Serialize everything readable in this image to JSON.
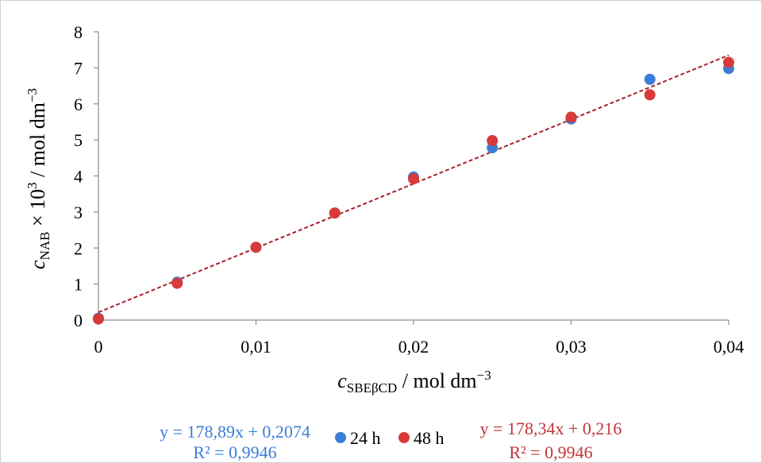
{
  "chart_data": {
    "type": "scatter",
    "xlabel": {
      "italic": "c",
      "sub": "SBEβCD",
      "rest": " / mol dm",
      "sup": "−3"
    },
    "ylabel": {
      "italic": "c",
      "sub": "NAB",
      "mid": " × 10",
      "sup1": "3",
      "rest": " / mol dm",
      "sup2": "−3"
    },
    "xlim": [
      0,
      0.04
    ],
    "ylim": [
      0,
      8
    ],
    "x_ticks": [
      {
        "value": 0,
        "label": "0"
      },
      {
        "value": 0.01,
        "label": "0,01"
      },
      {
        "value": 0.02,
        "label": "0,02"
      },
      {
        "value": 0.03,
        "label": "0,03"
      },
      {
        "value": 0.04,
        "label": "0,04"
      }
    ],
    "y_ticks": [
      {
        "value": 0,
        "label": "0"
      },
      {
        "value": 1,
        "label": "1"
      },
      {
        "value": 2,
        "label": "2"
      },
      {
        "value": 3,
        "label": "3"
      },
      {
        "value": 4,
        "label": "4"
      },
      {
        "value": 5,
        "label": "5"
      },
      {
        "value": 6,
        "label": "6"
      },
      {
        "value": 7,
        "label": "7"
      },
      {
        "value": 8,
        "label": "8"
      }
    ],
    "grid": false,
    "legend_position": "bottom",
    "series": [
      {
        "name": "24 h",
        "color": "#3b7dd8",
        "x": [
          0,
          0.005,
          0.01,
          0.015,
          0.02,
          0.025,
          0.03,
          0.035,
          0.04
        ],
        "y": [
          0.05,
          1.05,
          2.02,
          2.97,
          3.97,
          4.78,
          5.58,
          6.68,
          6.98
        ],
        "trendline": {
          "slope": 178.89,
          "intercept": 0.2074,
          "equation": "y = 178,89x + 0,2074",
          "r2": "R² = 0,9946"
        }
      },
      {
        "name": "48 h",
        "color": "#d83a3a",
        "x": [
          0,
          0.005,
          0.01,
          0.015,
          0.02,
          0.025,
          0.03,
          0.035,
          0.04
        ],
        "y": [
          0.03,
          1.02,
          2.02,
          2.97,
          3.92,
          4.98,
          5.63,
          6.25,
          7.15
        ],
        "trendline": {
          "slope": 178.34,
          "intercept": 0.216,
          "equation": "y = 178,34x + 0,216",
          "r2": "R² = 0,9946",
          "color": "#a8232a"
        }
      }
    ]
  }
}
